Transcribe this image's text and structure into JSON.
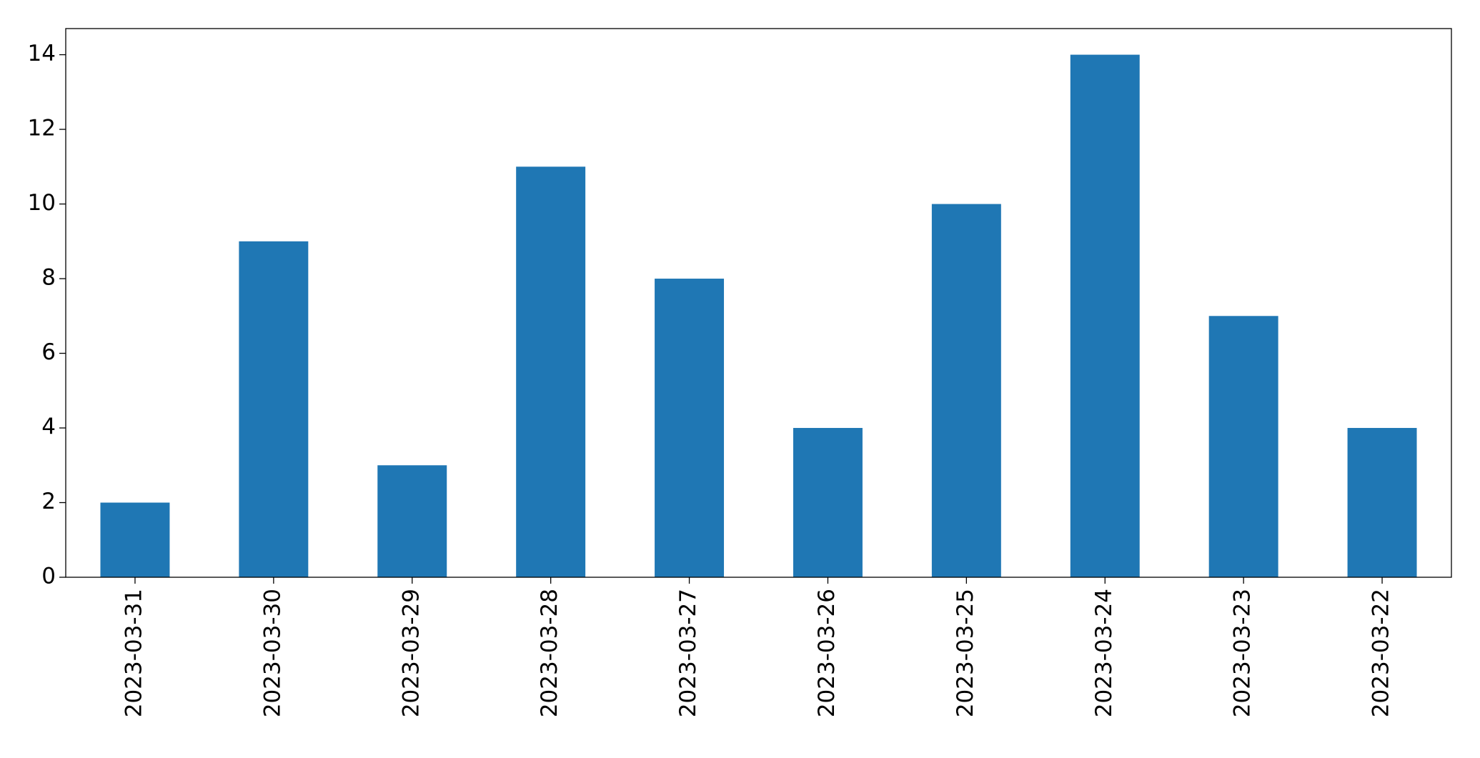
{
  "chart_data": {
    "type": "bar",
    "categories": [
      "2023-03-31",
      "2023-03-30",
      "2023-03-29",
      "2023-03-28",
      "2023-03-27",
      "2023-03-26",
      "2023-03-25",
      "2023-03-24",
      "2023-03-23",
      "2023-03-22"
    ],
    "values": [
      2,
      9,
      3,
      11,
      8,
      4,
      10,
      14,
      7,
      4
    ],
    "color": "#1f77b4",
    "ylim": [
      0,
      14.7
    ],
    "yticks": [
      0,
      2,
      4,
      6,
      8,
      10,
      12,
      14
    ],
    "grid": false
  }
}
